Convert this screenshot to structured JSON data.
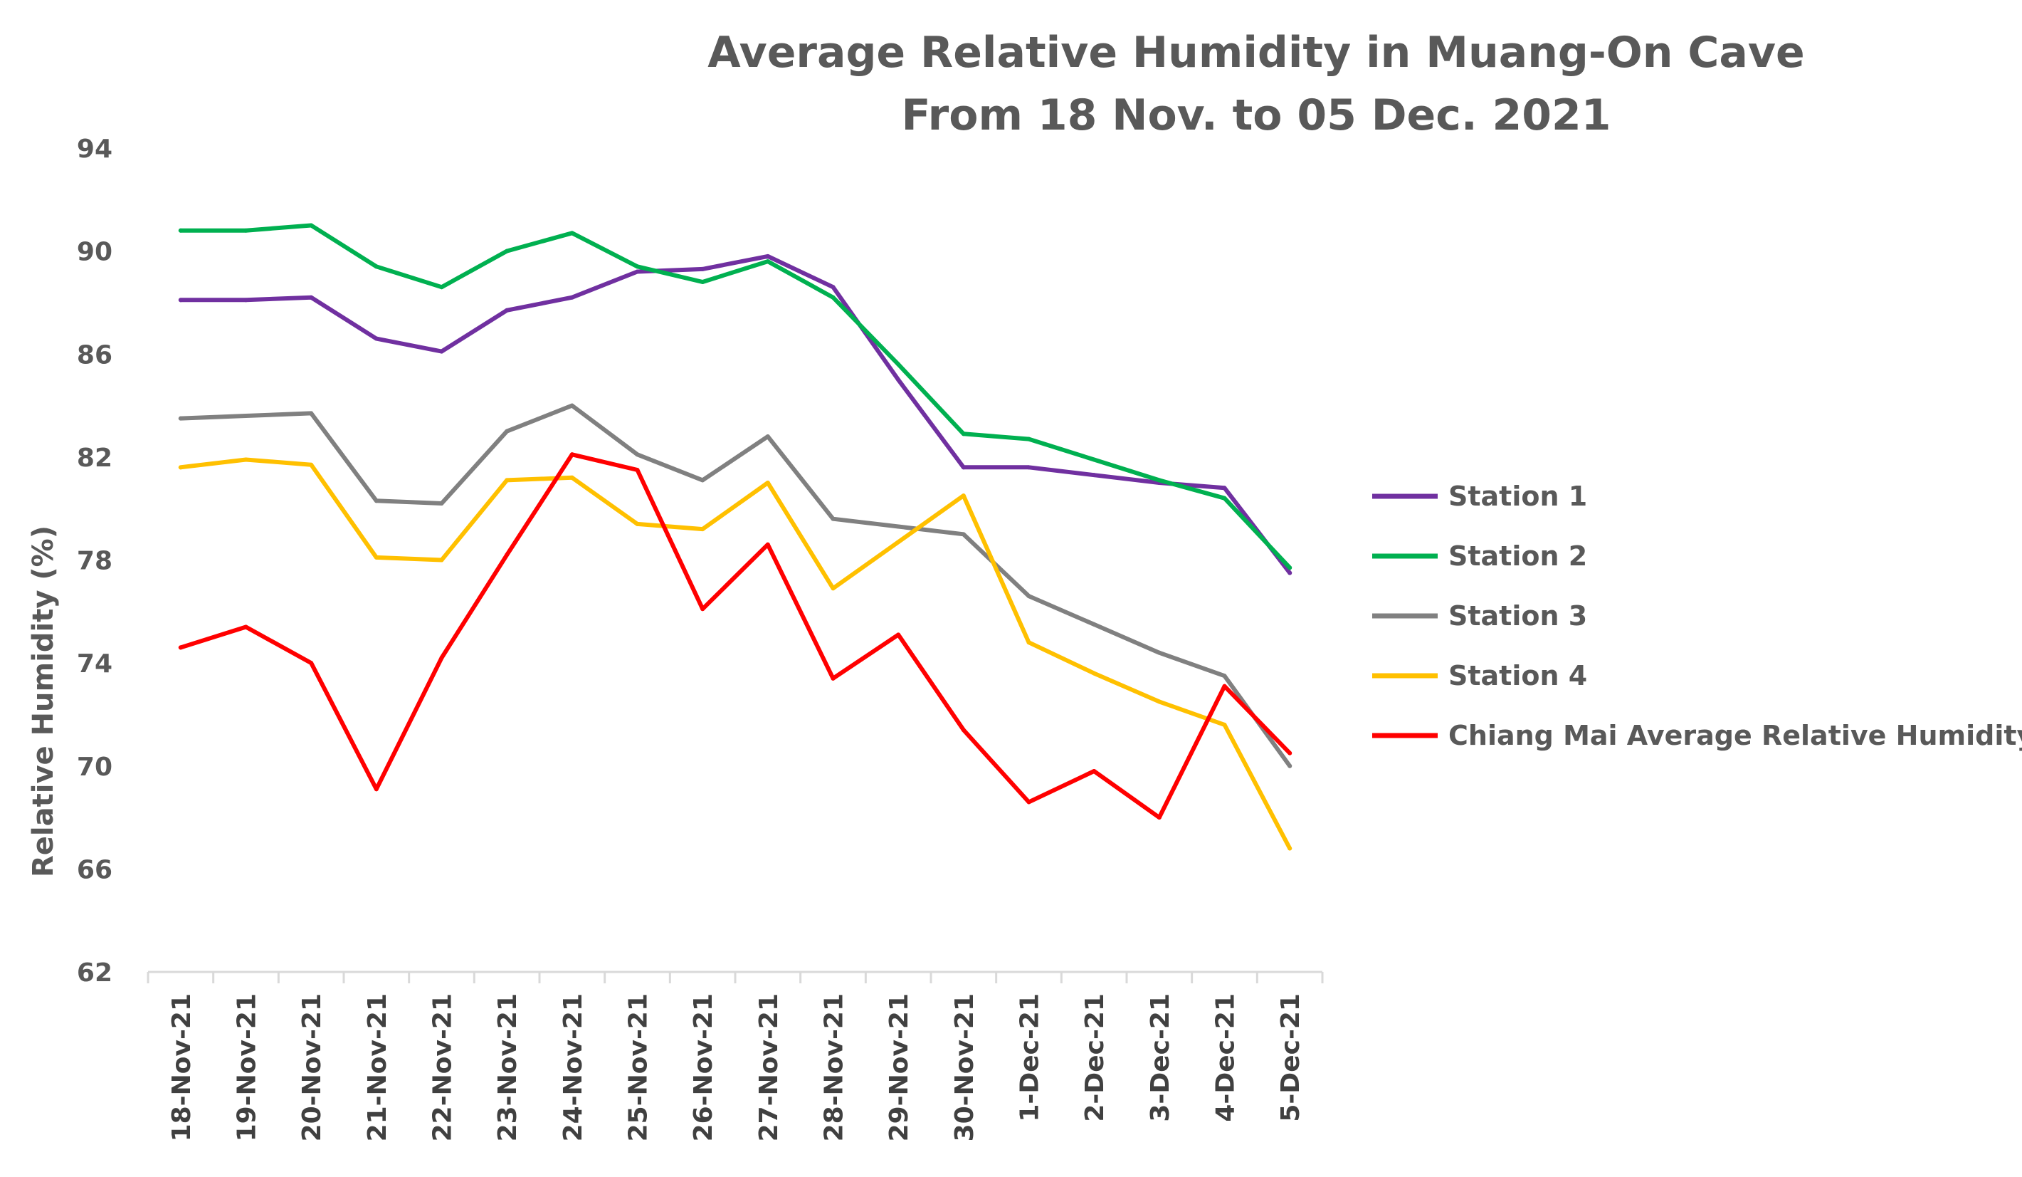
{
  "chart_data": {
    "type": "line",
    "title": [
      "Average Relative Humidity in Muang-On Cave",
      "From 18 Nov. to 05 Dec. 2021"
    ],
    "xlabel": "",
    "ylabel": "Relative Humidity (%)",
    "ylim": [
      62,
      94
    ],
    "yticks": [
      62,
      66,
      70,
      74,
      78,
      82,
      86,
      90,
      94
    ],
    "grid": false,
    "legend_position": "right",
    "categories": [
      "18-Nov-21",
      "19-Nov-21",
      "20-Nov-21",
      "21-Nov-21",
      "22-Nov-21",
      "23-Nov-21",
      "24-Nov-21",
      "25-Nov-21",
      "26-Nov-21",
      "27-Nov-21",
      "28-Nov-21",
      "29-Nov-21",
      "30-Nov-21",
      "1-Dec-21",
      "2-Dec-21",
      "3-Dec-21",
      "4-Dec-21",
      "5-Dec-21"
    ],
    "series": [
      {
        "name": "Station 1",
        "color": "#7030A0",
        "values": [
          88.1,
          88.1,
          88.2,
          86.6,
          86.1,
          87.7,
          88.2,
          89.2,
          89.3,
          89.8,
          88.6,
          85.0,
          81.6,
          81.6,
          81.3,
          81.0,
          80.8,
          77.5
        ]
      },
      {
        "name": "Station 2",
        "color": "#00B050",
        "values": [
          90.8,
          90.8,
          91.0,
          89.4,
          88.6,
          90.0,
          90.7,
          89.4,
          88.8,
          89.6,
          88.2,
          85.6,
          82.9,
          82.7,
          81.9,
          81.1,
          80.4,
          77.7
        ]
      },
      {
        "name": "Station 3",
        "color": "#808080",
        "values": [
          83.5,
          83.6,
          83.7,
          80.3,
          80.2,
          83.0,
          84.0,
          82.1,
          81.1,
          82.8,
          79.6,
          79.3,
          79.0,
          76.6,
          75.5,
          74.4,
          73.5,
          70.0
        ]
      },
      {
        "name": "Station 4",
        "color": "#FFC000",
        "values": [
          81.6,
          81.9,
          81.7,
          78.1,
          78.0,
          81.1,
          81.2,
          79.4,
          79.2,
          81.0,
          76.9,
          78.7,
          80.5,
          74.8,
          73.6,
          72.5,
          71.6,
          66.8
        ]
      },
      {
        "name": "Chiang Mai Average Relative Humidity",
        "color": "#FF0000",
        "values": [
          74.6,
          75.4,
          74.0,
          69.1,
          74.2,
          78.2,
          82.1,
          81.5,
          76.1,
          78.6,
          73.4,
          75.1,
          71.4,
          68.6,
          69.8,
          68.0,
          73.1,
          70.5
        ]
      }
    ]
  }
}
